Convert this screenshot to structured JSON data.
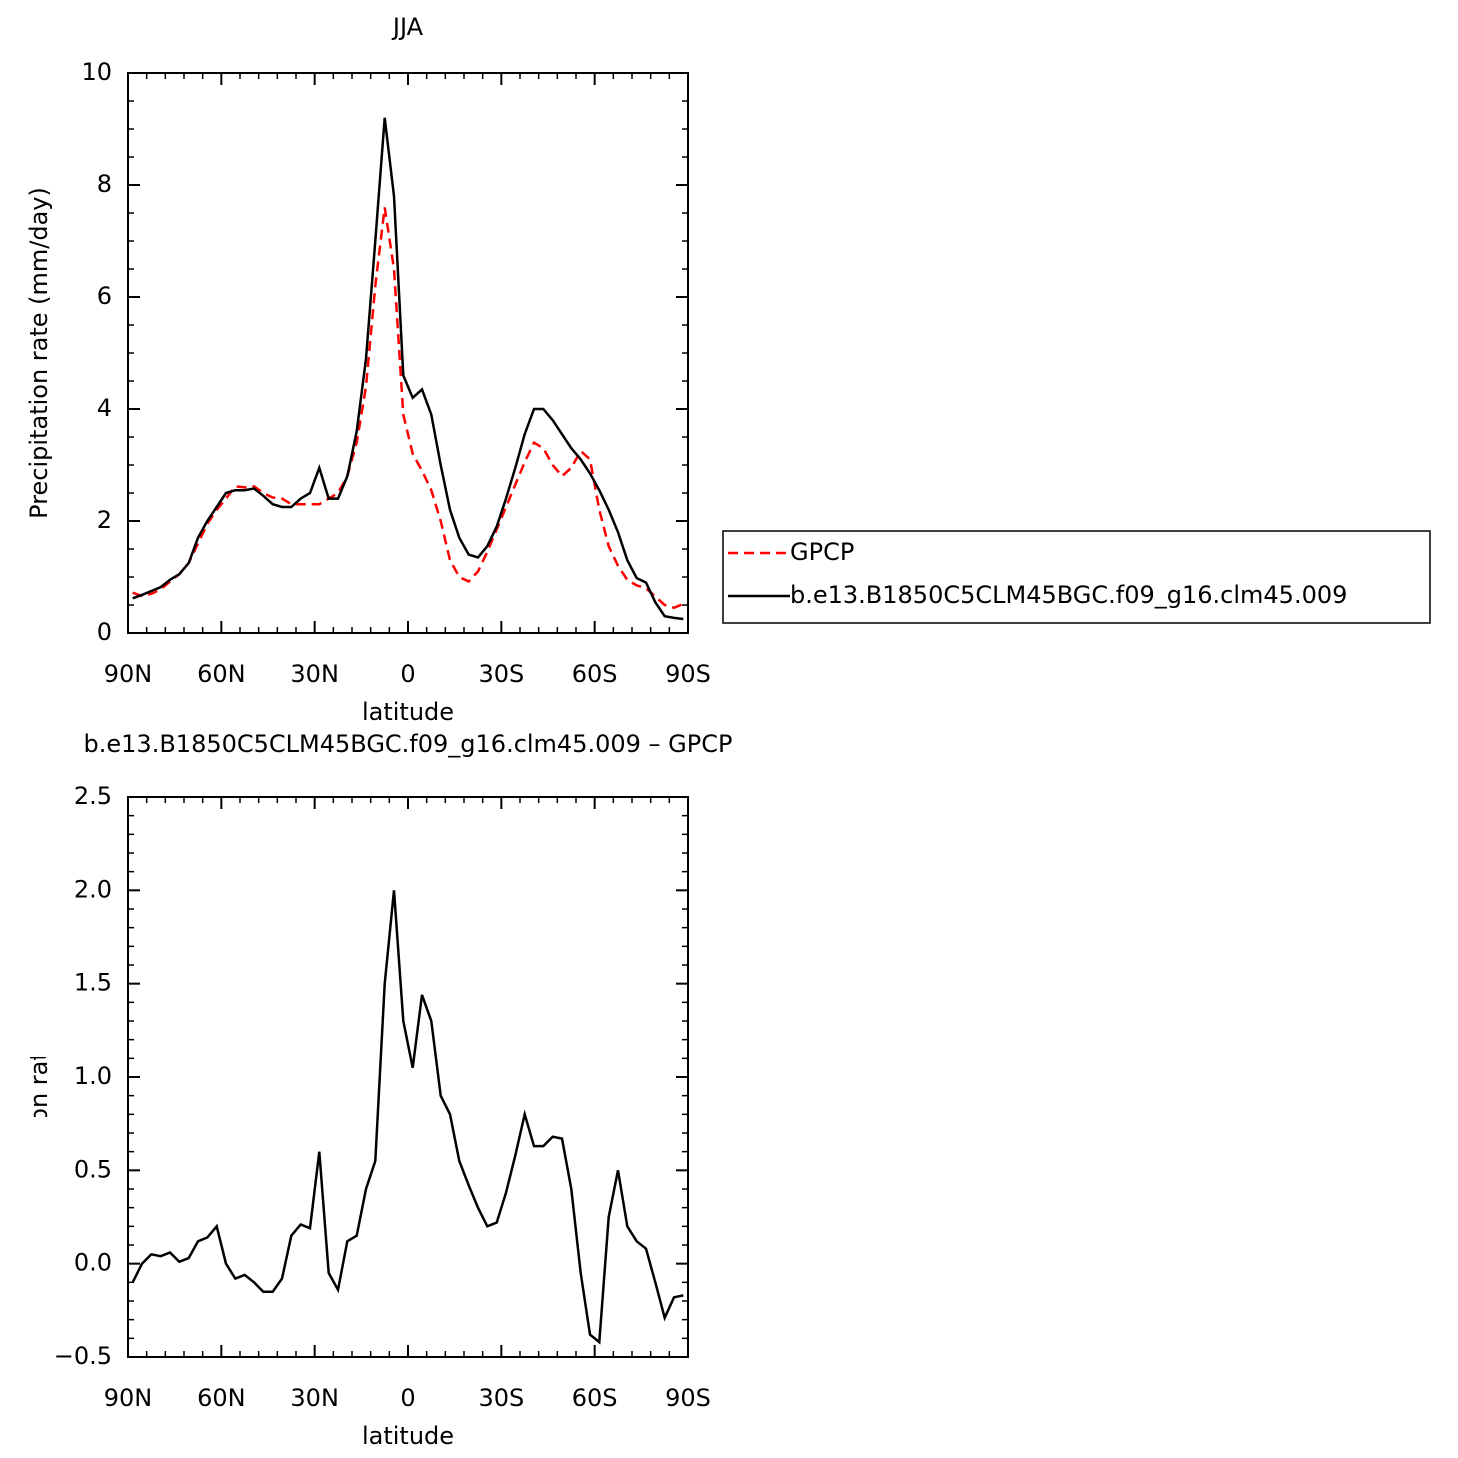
{
  "chart_data": [
    {
      "type": "line",
      "title": "JJA",
      "xlabel": "latitude",
      "ylabel": "Precipitation  rate  (mm/day)",
      "x": [
        88.5,
        85.5,
        82.5,
        79.5,
        76.5,
        73.5,
        70.5,
        67.5,
        64.5,
        61.5,
        58.5,
        55.5,
        52.5,
        49.5,
        46.5,
        43.5,
        40.5,
        37.5,
        34.5,
        31.5,
        28.5,
        25.5,
        22.5,
        19.5,
        16.5,
        13.5,
        10.5,
        7.5,
        4.5,
        1.5,
        -1.5,
        -4.5,
        -7.5,
        -10.5,
        -13.5,
        -16.5,
        -19.5,
        -22.5,
        -25.5,
        -28.5,
        -31.5,
        -34.5,
        -37.5,
        -40.5,
        -43.5,
        -46.5,
        -49.5,
        -52.5,
        -55.5,
        -58.5,
        -61.5,
        -64.5,
        -67.5,
        -70.5,
        -73.5,
        -76.5,
        -79.5,
        -82.5,
        -85.5,
        -88.5
      ],
      "series": [
        {
          "name": "GPCP",
          "color": "#ff0000",
          "linestyle": "dashed",
          "values": [
            0.72,
            0.66,
            0.7,
            0.78,
            0.92,
            1.05,
            1.25,
            1.6,
            1.95,
            2.2,
            2.4,
            2.62,
            2.6,
            2.62,
            2.5,
            2.42,
            2.4,
            2.3,
            2.3,
            2.3,
            2.3,
            2.4,
            2.5,
            2.8,
            3.4,
            4.4,
            6.2,
            7.6,
            6.5,
            3.9,
            3.2,
            2.9,
            2.55,
            2.0,
            1.3,
            1.0,
            0.92,
            1.1,
            1.45,
            1.85,
            2.25,
            2.65,
            3.05,
            3.4,
            3.3,
            3.0,
            2.8,
            2.95,
            3.25,
            3.1,
            2.2,
            1.55,
            1.2,
            0.95,
            0.85,
            0.8,
            0.65,
            0.5,
            0.45,
            0.52
          ]
        },
        {
          "name": "b.e13.B1850C5CLM45BGC.f09_g16.clm45.009",
          "color": "#000000",
          "linestyle": "solid",
          "values": [
            0.62,
            0.68,
            0.75,
            0.82,
            0.95,
            1.05,
            1.25,
            1.7,
            2.0,
            2.25,
            2.5,
            2.55,
            2.55,
            2.58,
            2.45,
            2.3,
            2.25,
            2.25,
            2.4,
            2.5,
            2.95,
            2.4,
            2.4,
            2.8,
            3.6,
            4.9,
            7.0,
            9.2,
            7.8,
            4.6,
            4.2,
            4.35,
            3.9,
            3.0,
            2.2,
            1.7,
            1.4,
            1.35,
            1.55,
            1.9,
            2.4,
            2.95,
            3.55,
            4.0,
            4.0,
            3.8,
            3.55,
            3.3,
            3.1,
            2.85,
            2.55,
            2.2,
            1.8,
            1.3,
            0.98,
            0.9,
            0.55,
            0.3,
            0.27,
            0.25
          ]
        }
      ],
      "xlim": [
        90,
        -90
      ],
      "xticks": [
        {
          "value": 90,
          "label": "90N"
        },
        {
          "value": 60,
          "label": "60N"
        },
        {
          "value": 30,
          "label": "30N"
        },
        0,
        {
          "value": -30,
          "label": "30S"
        },
        {
          "value": -60,
          "label": "60S"
        },
        {
          "value": -90,
          "label": "90S"
        }
      ],
      "ylim": [
        0,
        10
      ],
      "yticks": [
        0,
        2,
        4,
        6,
        8,
        10
      ],
      "legend": "right"
    },
    {
      "type": "line",
      "title": "b.e13.B1850C5CLM45BGC.f09_g16.clm45.009  –  GPCP",
      "xlabel": "latitude",
      "ylabel": "Precipitation rate (mm/day)",
      "x": [
        88.5,
        85.5,
        82.5,
        79.5,
        76.5,
        73.5,
        70.5,
        67.5,
        64.5,
        61.5,
        58.5,
        55.5,
        52.5,
        49.5,
        46.5,
        43.5,
        40.5,
        37.5,
        34.5,
        31.5,
        28.5,
        25.5,
        22.5,
        19.5,
        16.5,
        13.5,
        10.5,
        7.5,
        4.5,
        1.5,
        -1.5,
        -4.5,
        -7.5,
        -10.5,
        -13.5,
        -16.5,
        -19.5,
        -22.5,
        -25.5,
        -28.5,
        -31.5,
        -34.5,
        -37.5,
        -40.5,
        -43.5,
        -46.5,
        -49.5,
        -52.5,
        -55.5,
        -58.5,
        -61.5,
        -64.5,
        -67.5,
        -70.5,
        -73.5,
        -76.5,
        -79.5,
        -82.5,
        -85.5,
        -88.5
      ],
      "series": [
        {
          "color": "#000000",
          "linestyle": "solid",
          "values": [
            -0.1,
            0.0,
            0.05,
            0.04,
            0.06,
            0.01,
            0.03,
            0.12,
            0.14,
            0.2,
            0.0,
            -0.08,
            -0.06,
            -0.1,
            -0.15,
            -0.15,
            -0.08,
            0.15,
            0.21,
            0.19,
            0.6,
            -0.05,
            -0.14,
            0.12,
            0.15,
            0.4,
            0.55,
            1.5,
            2.0,
            1.3,
            1.05,
            1.44,
            1.3,
            0.9,
            0.8,
            0.55,
            0.42,
            0.3,
            0.2,
            0.22,
            0.38,
            0.58,
            0.8,
            0.63,
            0.63,
            0.68,
            0.67,
            0.4,
            -0.05,
            -0.38,
            -0.42,
            0.25,
            0.5,
            0.2,
            0.12,
            0.08,
            -0.1,
            -0.29,
            -0.18,
            -0.17
          ]
        }
      ],
      "xlim": [
        90,
        -90
      ],
      "xticks": [
        {
          "value": 90,
          "label": "90N"
        },
        {
          "value": 60,
          "label": "60N"
        },
        {
          "value": 30,
          "label": "30N"
        },
        0,
        {
          "value": -30,
          "label": "30S"
        },
        {
          "value": -60,
          "label": "60S"
        },
        {
          "value": -90,
          "label": "90S"
        }
      ],
      "ylim": [
        -0.5,
        2.5
      ],
      "yticks": [
        {
          "value": -0.5,
          "label": "−0.5"
        },
        {
          "value": 0,
          "label": "0.0"
        },
        0.5,
        {
          "value": 1,
          "label": "1.0"
        },
        1.5,
        {
          "value": 2,
          "label": "2.0"
        },
        2.5
      ]
    }
  ]
}
